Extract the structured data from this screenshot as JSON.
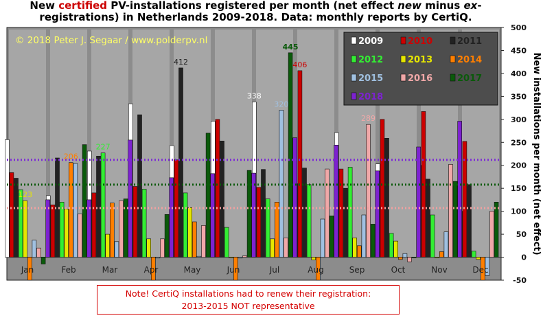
{
  "title": {
    "part1": "New ",
    "highlight": "certified",
    "part2": " PV-installations registered per month (net effect ",
    "new_word": "new",
    "part3": " minus ",
    "ex_word": "ex",
    "part4": "-registrations) in Netherlands 2009-2018. Data: monthly reports by CertiQ."
  },
  "copyright": "© 2018 Peter J. Segaar / www.polderpv.nl",
  "note": {
    "line1": "Note! CertiQ installations  had to renew their registration:",
    "line2": "2013-2015  NOT representative"
  },
  "colors": {
    "plot_bg": "#a6a6a6",
    "frame_bg": "#8c8c8c",
    "legend_bg": "#4d4d4d",
    "copyright": "#ffff66",
    "ref_purple": "#7d2ad6",
    "ref_green": "#0a5a0a",
    "ref_pink": "#f2a0a0"
  },
  "chart_data": {
    "type": "bar",
    "title": "New certified PV-installations registered per month (net effect new minus ex-registrations) in Netherlands 2009-2018. Data: monthly reports by CertiQ.",
    "ylabel": "New installations per month (net effect)",
    "xlabel": "",
    "ylim": [
      -50,
      500
    ],
    "yticks": [
      -50,
      0,
      50,
      100,
      150,
      200,
      250,
      300,
      350,
      400,
      450,
      500
    ],
    "grid": false,
    "legend_position": "top-right",
    "categories": [
      "Jan",
      "Feb",
      "Mar",
      "Apr",
      "May",
      "Jun",
      "Jul",
      "Aug",
      "Sep",
      "Oct",
      "Nov",
      "Dec"
    ],
    "series": [
      {
        "name": "2009",
        "color": "#ffffff",
        "values": [
          256,
          134,
          231,
          334,
          243,
          296,
          338,
          160,
          271,
          203,
          200,
          100
        ]
      },
      {
        "name": "2010",
        "color": "#cc0000",
        "values": [
          184,
          114,
          140,
          154,
          212,
          300,
          152,
          406,
          192,
          300,
          317,
          252
        ]
      },
      {
        "name": "2011",
        "color": "#222222",
        "values": [
          172,
          216,
          220,
          310,
          412,
          253,
          191,
          194,
          150,
          259,
          170,
          158
        ]
      },
      {
        "name": "2012",
        "color": "#33ee33",
        "values": [
          147,
          120,
          227,
          148,
          140,
          65,
          127,
          158,
          196,
          52,
          92,
          13
        ]
      },
      {
        "name": "2013",
        "color": "#e6e600",
        "values": [
          123,
          105,
          50,
          40,
          108,
          0,
          40,
          -6,
          42,
          35,
          0,
          -5
        ]
      },
      {
        "name": "2014",
        "color": "#ff7f00",
        "values": [
          -50,
          206,
          118,
          -50,
          77,
          -50,
          120,
          -50,
          25,
          -5,
          12,
          -50
        ]
      },
      {
        "name": "2015",
        "color": "#a0c0e0",
        "values": [
          37,
          204,
          34,
          -2,
          2,
          -2,
          320,
          83,
          92,
          8,
          55,
          -40
        ]
      },
      {
        "name": "2016",
        "color": "#f0a8a8",
        "values": [
          20,
          94,
          123,
          40,
          69,
          3,
          42,
          192,
          289,
          -10,
          202,
          100
        ]
      },
      {
        "name": "2017",
        "color": "#0a5a0a",
        "values": [
          -15,
          245,
          127,
          93,
          270,
          189,
          445,
          90,
          72,
          0,
          165,
          120
        ]
      },
      {
        "name": "2018",
        "color": "#7d22d0",
        "values": [
          125,
          125,
          255,
          173,
          182,
          183,
          260,
          244,
          188,
          240,
          296,
          null
        ]
      }
    ],
    "data_labels": [
      {
        "series": "2011",
        "month": "May",
        "text": "412"
      },
      {
        "series": "2009",
        "month": "Jul",
        "text": "338"
      },
      {
        "series": "2015",
        "month": "Jul",
        "text": "320"
      },
      {
        "series": "2017",
        "month": "Jul",
        "text": "445"
      },
      {
        "series": "2010",
        "month": "Aug",
        "text": "406"
      },
      {
        "series": "2016",
        "month": "Sep",
        "text": "289"
      },
      {
        "series": "2014",
        "month": "Feb",
        "text": "206"
      },
      {
        "series": "2012",
        "month": "Mar",
        "text": "227"
      },
      {
        "series": "2013",
        "month": "Jan",
        "text": "123"
      }
    ],
    "reference_lines": [
      {
        "color": "#7d2ad6",
        "value": 212
      },
      {
        "color": "#0a5a0a",
        "value": 158
      },
      {
        "color": "#f2a0a0",
        "value": 107
      }
    ]
  }
}
